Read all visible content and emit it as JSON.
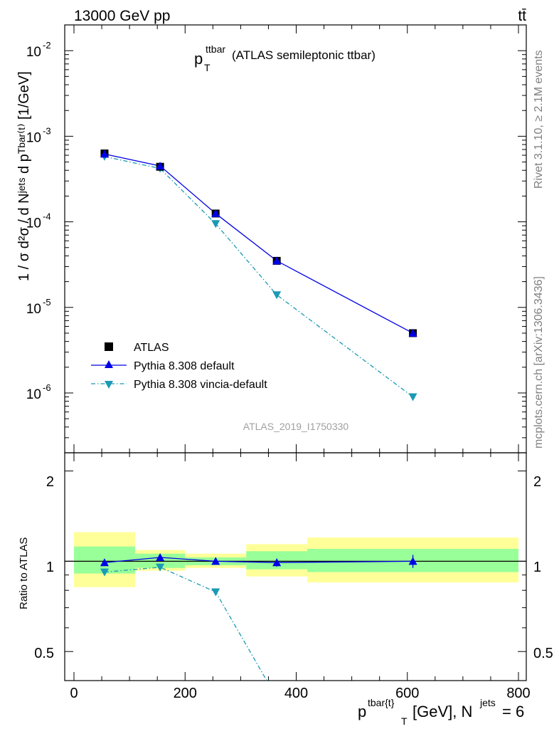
{
  "header": {
    "left": "13000 GeV pp",
    "right": "tt̄"
  },
  "side_text": {
    "rivet": "Rivet 3.1.10, ≥ 2.1M events",
    "mcplots": "mcplots.cern.ch [arXiv:1306.3436]"
  },
  "main_panel": {
    "title_main": "p",
    "title_sup": "ttbar",
    "title_sub": "T",
    "title_tail": "(ATLAS semileptonic ttbar)",
    "watermark": "ATLAS_2019_I1750330",
    "ylabel": "1 / σ d²σ / d Nʲᵉᵗˢ d pᵀᵇᵃʳ⁽ᵗ⁾ [1/GeV]",
    "ytick_labels": [
      {
        "base": "10",
        "exp": "-2",
        "value": 0.01
      },
      {
        "base": "10",
        "exp": "-3",
        "value": 0.001
      },
      {
        "base": "10",
        "exp": "-4",
        "value": 0.0001
      },
      {
        "base": "10",
        "exp": "-5",
        "value": 1e-05
      },
      {
        "base": "10",
        "exp": "-6",
        "value": 1e-06
      }
    ]
  },
  "legend": {
    "atlas": "ATLAS",
    "default": "Pythia 8.308 default",
    "vincia": "Pythia 8.308 vincia-default"
  },
  "ratio_panel": {
    "ylabel": "Ratio to ATLAS",
    "ytick_labels_left": [
      "2",
      "1",
      "0.5"
    ],
    "ytick_labels_right": [
      "2",
      "1",
      "0.5"
    ]
  },
  "xaxis": {
    "tick_labels": [
      "0",
      "200",
      "400",
      "600",
      "800"
    ],
    "label_p": "p",
    "label_sup": "tbar{t}",
    "label_sub": "T",
    "label_mid": "[GeV], N",
    "label_sup2": "jets",
    "label_tail": "= 6"
  },
  "chart_data": {
    "type": "line",
    "xlim": [
      0,
      800
    ],
    "main_ylim": [
      2e-07,
      0.02
    ],
    "main_yscale": "log",
    "ratio_ylim": [
      0.4,
      2.3
    ],
    "ratio_yscale": "log",
    "bins": [
      [
        0,
        110
      ],
      [
        110,
        200
      ],
      [
        200,
        310
      ],
      [
        310,
        420
      ],
      [
        420,
        800
      ]
    ],
    "x": [
      55,
      155,
      255,
      365,
      610
    ],
    "series": [
      {
        "name": "ATLAS",
        "values": [
          0.00063,
          0.00044,
          0.000125,
          3.5e-05,
          5e-06
        ],
        "color": "#000000"
      },
      {
        "name": "Pythia 8.308 default",
        "values": [
          0.00062,
          0.00045,
          0.000125,
          3.5e-05,
          5e-06
        ],
        "color": "#0000e6"
      },
      {
        "name": "Pythia 8.308 vincia-default",
        "values": [
          0.00058,
          0.00042,
          9.5e-05,
          1.4e-05,
          9e-07
        ],
        "color": "#1a9ab4"
      }
    ],
    "ratio_series": [
      {
        "name": "Pythia 8.308 default",
        "values": [
          0.99,
          1.03,
          1.0,
          0.99,
          1.0
        ]
      },
      {
        "name": "Pythia 8.308 vincia-default",
        "values": [
          0.92,
          0.955,
          0.79,
          0.35,
          0.18
        ]
      }
    ],
    "uncertainty_bands": {
      "stat_color": "#99ff99",
      "total_color": "#ffff99",
      "green": [
        [
          0.91,
          1.12
        ],
        [
          0.95,
          1.06
        ],
        [
          0.97,
          1.03
        ],
        [
          0.94,
          1.08
        ],
        [
          0.92,
          1.1
        ]
      ],
      "yellow": [
        [
          0.82,
          1.25
        ],
        [
          0.93,
          1.09
        ],
        [
          0.95,
          1.06
        ],
        [
          0.89,
          1.14
        ],
        [
          0.85,
          1.2
        ]
      ]
    }
  }
}
